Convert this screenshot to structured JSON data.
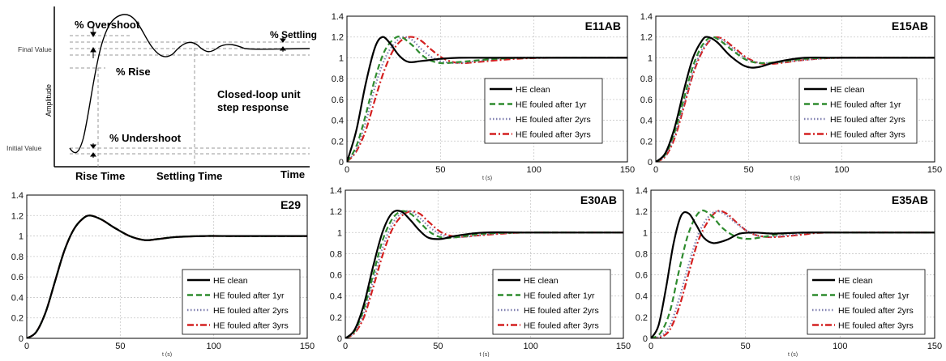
{
  "schematic": {
    "annotations": {
      "overshoot": "% Overshoot",
      "settling": "% Settling",
      "final_value": "Final Value",
      "rise": "% Rise",
      "undershoot": "% Undershoot",
      "initial_value": "Initial Value",
      "amplitude": "Amplitude",
      "caption_line1": "Closed-loop unit",
      "caption_line2": "step response",
      "rise_time": "Rise Time",
      "settling_time": "Settling Time",
      "time": "Time"
    }
  },
  "chart_data": [
    {
      "id": "E11AB",
      "type": "line",
      "title": "E11AB",
      "xlabel": "t (s)",
      "xlim": [
        0,
        150
      ],
      "ylim": [
        0,
        1.4
      ],
      "xticks": [
        "0",
        "50",
        "100",
        "150"
      ],
      "yticks": [
        "0",
        "0.2",
        "0.4",
        "0.6",
        "0.8",
        "1",
        "1.2",
        "1.4"
      ],
      "grid": true,
      "legend_position": "center-right",
      "series": [
        {
          "name": "HE clean",
          "color": "#000000",
          "style": "solid",
          "x": [
            0,
            5,
            10,
            15,
            19,
            23,
            28,
            33,
            40,
            50,
            60,
            80,
            100,
            150
          ],
          "y": [
            0,
            0.3,
            0.75,
            1.1,
            1.2,
            1.14,
            1.02,
            0.96,
            0.97,
            0.99,
            1.0,
            1.0,
            1.0,
            1.0
          ]
        },
        {
          "name": "HE fouled after 1yr",
          "color": "#2e8b2e",
          "style": "dashed",
          "x": [
            0,
            5,
            10,
            15,
            20,
            25,
            29,
            35,
            42,
            50,
            60,
            80,
            100,
            150
          ],
          "y": [
            0,
            0.15,
            0.45,
            0.8,
            1.06,
            1.18,
            1.2,
            1.12,
            1.0,
            0.95,
            0.96,
            0.99,
            1.0,
            1.0
          ]
        },
        {
          "name": "HE fouled after 2yrs",
          "color": "#8080b0",
          "style": "dotted",
          "x": [
            0,
            5,
            10,
            15,
            20,
            25,
            30,
            35,
            40,
            48,
            58,
            70,
            90,
            150
          ],
          "y": [
            0,
            0.12,
            0.38,
            0.72,
            0.98,
            1.13,
            1.2,
            1.17,
            1.08,
            0.98,
            0.95,
            0.97,
            1.0,
            1.0
          ]
        },
        {
          "name": "HE fouled after 3yrs",
          "color": "#d42020",
          "style": "dashdot",
          "x": [
            0,
            5,
            10,
            15,
            20,
            25,
            30,
            35,
            40,
            45,
            52,
            60,
            70,
            90,
            110,
            150
          ],
          "y": [
            0,
            0.1,
            0.3,
            0.6,
            0.88,
            1.08,
            1.18,
            1.2,
            1.16,
            1.08,
            0.99,
            0.95,
            0.96,
            0.99,
            1.0,
            1.0
          ]
        }
      ]
    },
    {
      "id": "E15AB",
      "type": "line",
      "title": "E15AB",
      "xlabel": "t (s)",
      "xlim": [
        0,
        150
      ],
      "ylim": [
        0,
        1.4
      ],
      "xticks": [
        "0",
        "50",
        "100",
        "150"
      ],
      "yticks": [
        "0",
        "0.2",
        "0.4",
        "0.6",
        "0.8",
        "1",
        "1.2",
        "1.4"
      ],
      "grid": true,
      "legend_position": "center-right",
      "series": [
        {
          "name": "HE clean",
          "color": "#000000",
          "style": "solid",
          "x": [
            0,
            5,
            10,
            15,
            20,
            25,
            28,
            33,
            40,
            48,
            55,
            65,
            80,
            100,
            150
          ],
          "y": [
            0,
            0.08,
            0.32,
            0.68,
            1.0,
            1.17,
            1.2,
            1.15,
            1.02,
            0.92,
            0.91,
            0.96,
            1.0,
            1.0,
            1.0
          ]
        },
        {
          "name": "HE fouled after 1yr",
          "color": "#2e8b2e",
          "style": "dashed",
          "x": [
            0,
            5,
            10,
            15,
            20,
            25,
            30,
            35,
            42,
            50,
            60,
            80,
            100,
            150
          ],
          "y": [
            0,
            0.07,
            0.28,
            0.6,
            0.92,
            1.12,
            1.2,
            1.16,
            1.06,
            0.97,
            0.95,
            0.99,
            1.0,
            1.0
          ]
        },
        {
          "name": "HE fouled after 2yrs",
          "color": "#8080b0",
          "style": "dotted",
          "x": [
            0,
            5,
            10,
            15,
            20,
            25,
            30,
            35,
            42,
            50,
            60,
            80,
            100,
            150
          ],
          "y": [
            0,
            0.06,
            0.25,
            0.55,
            0.87,
            1.08,
            1.18,
            1.18,
            1.08,
            0.98,
            0.95,
            0.98,
            1.0,
            1.0
          ]
        },
        {
          "name": "HE fouled after 3yrs",
          "color": "#d42020",
          "style": "dashdot",
          "x": [
            0,
            5,
            10,
            15,
            20,
            25,
            30,
            35,
            42,
            50,
            60,
            80,
            100,
            150
          ],
          "y": [
            0,
            0.05,
            0.22,
            0.52,
            0.84,
            1.06,
            1.18,
            1.19,
            1.1,
            0.99,
            0.94,
            0.98,
            1.0,
            1.0
          ]
        }
      ]
    },
    {
      "id": "E29",
      "type": "line",
      "title": "E29",
      "xlabel": "t (s)",
      "xlim": [
        0,
        150
      ],
      "ylim": [
        0,
        1.4
      ],
      "xticks": [
        "0",
        "50",
        "100",
        "150"
      ],
      "yticks": [
        "0",
        "0.2",
        "0.4",
        "0.6",
        "0.8",
        "1",
        "1.2",
        "1.4"
      ],
      "grid": true,
      "legend_position": "bottom-right",
      "series": [
        {
          "name": "HE clean",
          "color": "#000000",
          "style": "solid",
          "x": [
            0,
            5,
            10,
            15,
            20,
            25,
            30,
            34,
            40,
            47,
            55,
            63,
            70,
            80,
            95,
            110,
            150
          ],
          "y": [
            0,
            0.06,
            0.25,
            0.55,
            0.85,
            1.06,
            1.17,
            1.2,
            1.16,
            1.08,
            1.0,
            0.96,
            0.97,
            0.99,
            1.0,
            1.0,
            1.0
          ]
        },
        {
          "name": "HE fouled after 1yr",
          "color": "#2e8b2e",
          "style": "dashed",
          "x": [
            0,
            5,
            10,
            15,
            20,
            25,
            30,
            34,
            40,
            47,
            55,
            63,
            70,
            80,
            95,
            110,
            150
          ],
          "y": [
            0,
            0.06,
            0.25,
            0.55,
            0.85,
            1.06,
            1.17,
            1.2,
            1.16,
            1.08,
            1.0,
            0.96,
            0.97,
            0.99,
            1.0,
            1.0,
            1.0
          ]
        },
        {
          "name": "HE fouled after 2yrs",
          "color": "#8080b0",
          "style": "dotted",
          "x": [
            0,
            5,
            10,
            15,
            20,
            25,
            30,
            34,
            40,
            47,
            55,
            63,
            70,
            80,
            95,
            110,
            150
          ],
          "y": [
            0,
            0.06,
            0.25,
            0.55,
            0.85,
            1.06,
            1.17,
            1.2,
            1.16,
            1.08,
            1.0,
            0.96,
            0.97,
            0.99,
            1.0,
            1.0,
            1.0
          ]
        },
        {
          "name": "HE fouled after 3yrs",
          "color": "#d42020",
          "style": "dashdot",
          "x": [
            0,
            5,
            10,
            15,
            20,
            25,
            30,
            34,
            40,
            47,
            55,
            63,
            70,
            80,
            95,
            110,
            150
          ],
          "y": [
            0,
            0.06,
            0.25,
            0.55,
            0.85,
            1.06,
            1.17,
            1.2,
            1.16,
            1.08,
            1.0,
            0.96,
            0.97,
            0.99,
            1.0,
            1.0,
            1.0
          ]
        }
      ]
    },
    {
      "id": "E30AB",
      "type": "line",
      "title": "E30AB",
      "xlabel": "t (s)",
      "xlim": [
        0,
        150
      ],
      "ylim": [
        0,
        1.4
      ],
      "xticks": [
        "0",
        "50",
        "100",
        "150"
      ],
      "yticks": [
        "0",
        "0.2",
        "0.4",
        "0.6",
        "0.8",
        "1",
        "1.2",
        "1.4"
      ],
      "grid": true,
      "legend_position": "bottom-right",
      "series": [
        {
          "name": "HE clean",
          "color": "#000000",
          "style": "solid",
          "x": [
            0,
            5,
            10,
            15,
            20,
            25,
            30,
            35,
            40,
            45,
            52,
            60,
            75,
            100,
            150
          ],
          "y": [
            0,
            0.08,
            0.32,
            0.68,
            1.0,
            1.18,
            1.2,
            1.12,
            1.02,
            0.95,
            0.94,
            0.97,
            1.0,
            1.0,
            1.0
          ]
        },
        {
          "name": "HE fouled after 1yr",
          "color": "#2e8b2e",
          "style": "dashed",
          "x": [
            0,
            5,
            10,
            15,
            20,
            25,
            30,
            35,
            40,
            46,
            53,
            62,
            75,
            100,
            150
          ],
          "y": [
            0,
            0.07,
            0.28,
            0.6,
            0.92,
            1.12,
            1.2,
            1.18,
            1.1,
            1.0,
            0.95,
            0.96,
            0.99,
            1.0,
            1.0
          ]
        },
        {
          "name": "HE fouled after 2yrs",
          "color": "#8080b0",
          "style": "dotted",
          "x": [
            0,
            5,
            10,
            15,
            20,
            25,
            30,
            35,
            40,
            47,
            55,
            65,
            80,
            100,
            150
          ],
          "y": [
            0,
            0.06,
            0.24,
            0.54,
            0.85,
            1.07,
            1.18,
            1.2,
            1.14,
            1.03,
            0.96,
            0.96,
            0.99,
            1.0,
            1.0
          ]
        },
        {
          "name": "HE fouled after 3yrs",
          "color": "#d42020",
          "style": "dashdot",
          "x": [
            0,
            5,
            10,
            15,
            20,
            25,
            30,
            35,
            40,
            45,
            52,
            60,
            70,
            85,
            100,
            150
          ],
          "y": [
            0,
            0.05,
            0.2,
            0.48,
            0.78,
            1.02,
            1.15,
            1.2,
            1.18,
            1.1,
            1.0,
            0.96,
            0.97,
            0.99,
            1.0,
            1.0
          ]
        }
      ]
    },
    {
      "id": "E35AB",
      "type": "line",
      "title": "E35AB",
      "xlabel": "t (s)",
      "xlim": [
        0,
        150
      ],
      "ylim": [
        0,
        1.4
      ],
      "xticks": [
        "0",
        "50",
        "100",
        "150"
      ],
      "yticks": [
        "0",
        "0.2",
        "0.4",
        "0.6",
        "0.8",
        "1",
        "1.2",
        "1.4"
      ],
      "grid": true,
      "legend_position": "bottom-right",
      "series": [
        {
          "name": "HE clean",
          "color": "#000000",
          "style": "solid",
          "x": [
            0,
            4,
            8,
            12,
            16,
            20,
            24,
            28,
            33,
            40,
            47,
            55,
            65,
            80,
            100,
            150
          ],
          "y": [
            0,
            0.12,
            0.48,
            0.9,
            1.16,
            1.18,
            1.07,
            0.95,
            0.9,
            0.93,
            0.99,
            1.0,
            0.99,
            1.0,
            1.0,
            1.0
          ]
        },
        {
          "name": "HE fouled after 1yr",
          "color": "#2e8b2e",
          "style": "dashed",
          "x": [
            0,
            5,
            10,
            15,
            20,
            26,
            32,
            38,
            45,
            52,
            60,
            70,
            85,
            100,
            150
          ],
          "y": [
            0,
            0.05,
            0.25,
            0.65,
            1.0,
            1.2,
            1.16,
            1.04,
            0.96,
            0.94,
            0.96,
            0.99,
            1.0,
            1.0,
            1.0
          ]
        },
        {
          "name": "HE fouled after 2yrs",
          "color": "#8080b0",
          "style": "dotted",
          "x": [
            0,
            5,
            10,
            15,
            20,
            25,
            30,
            35,
            40,
            47,
            55,
            62,
            75,
            90,
            150
          ],
          "y": [
            0,
            0.02,
            0.12,
            0.38,
            0.7,
            0.98,
            1.14,
            1.2,
            1.16,
            1.06,
            0.98,
            0.96,
            0.98,
            1.0,
            1.0
          ]
        },
        {
          "name": "HE fouled after 3yrs",
          "color": "#d42020",
          "style": "dashdot",
          "x": [
            0,
            5,
            10,
            15,
            20,
            25,
            30,
            35,
            40,
            45,
            52,
            60,
            68,
            80,
            95,
            150
          ],
          "y": [
            0,
            0.01,
            0.08,
            0.3,
            0.62,
            0.92,
            1.1,
            1.2,
            1.18,
            1.1,
            1.0,
            0.96,
            0.96,
            0.98,
            1.0,
            1.0
          ]
        }
      ]
    }
  ]
}
